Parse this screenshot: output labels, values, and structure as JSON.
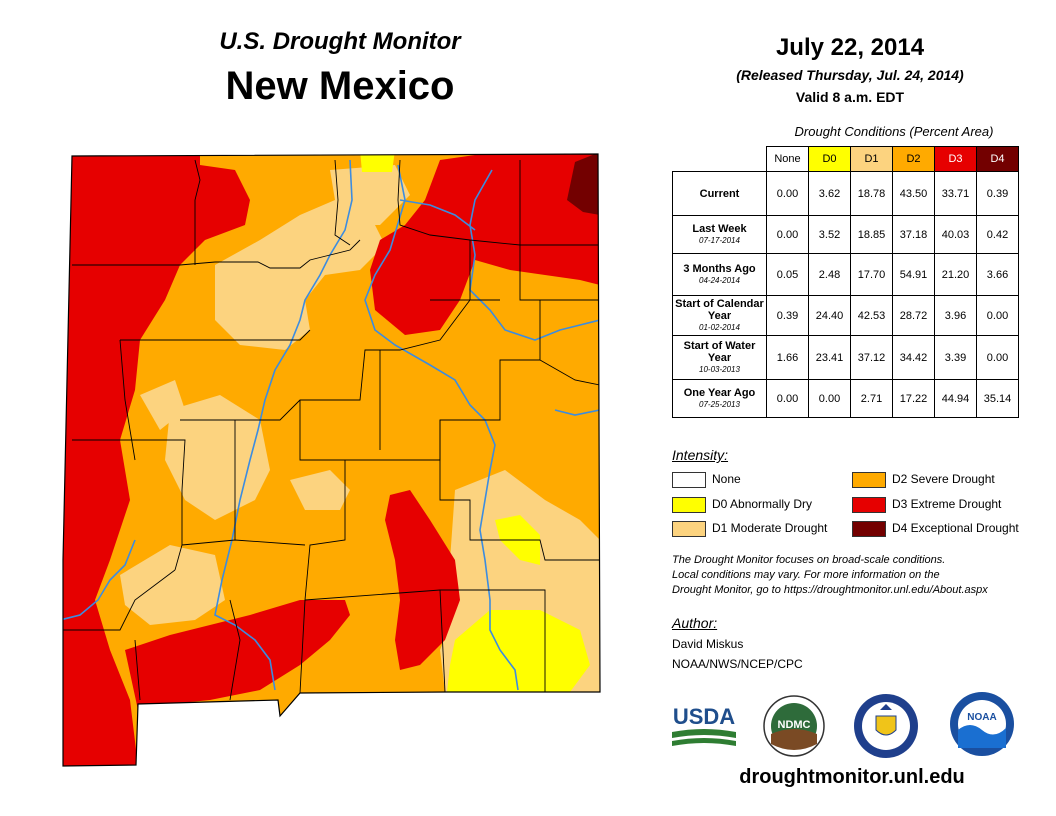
{
  "header": {
    "subtitle": "U.S. Drought Monitor",
    "state": "New Mexico",
    "date": "July 22, 2014",
    "released": "(Released Thursday, Jul. 24, 2014)",
    "valid": "Valid 8 a.m. EDT"
  },
  "table": {
    "caption": "Drought Conditions (Percent Area)",
    "columns": [
      {
        "label": "None",
        "color": "#ffffff"
      },
      {
        "label": "D0",
        "color": "#ffff00"
      },
      {
        "label": "D1",
        "color": "#fcd37f"
      },
      {
        "label": "D2",
        "color": "#ffaa00"
      },
      {
        "label": "D3",
        "color": "#e60000"
      },
      {
        "label": "D4",
        "color": "#730000"
      }
    ],
    "rows": [
      {
        "label": "Current",
        "date": "",
        "values": [
          "0.00",
          "3.62",
          "18.78",
          "43.50",
          "33.71",
          "0.39"
        ]
      },
      {
        "label": "Last Week",
        "date": "07-17-2014",
        "values": [
          "0.00",
          "3.52",
          "18.85",
          "37.18",
          "40.03",
          "0.42"
        ]
      },
      {
        "label": "3 Months Ago",
        "date": "04-24-2014",
        "values": [
          "0.05",
          "2.48",
          "17.70",
          "54.91",
          "21.20",
          "3.66"
        ]
      },
      {
        "label": "Start of Calendar Year",
        "date": "01-02-2014",
        "values": [
          "0.39",
          "24.40",
          "42.53",
          "28.72",
          "3.96",
          "0.00"
        ]
      },
      {
        "label": "Start of Water Year",
        "date": "10-03-2013",
        "values": [
          "1.66",
          "23.41",
          "37.12",
          "34.42",
          "3.39",
          "0.00"
        ]
      },
      {
        "label": "One Year Ago",
        "date": "07-25-2013",
        "values": [
          "0.00",
          "0.00",
          "2.71",
          "17.22",
          "44.94",
          "35.14"
        ]
      }
    ]
  },
  "legend": {
    "title": "Intensity:",
    "items": [
      {
        "label": "None",
        "color": "#ffffff"
      },
      {
        "label": "D0 Abnormally Dry",
        "color": "#ffff00"
      },
      {
        "label": "D1 Moderate Drought",
        "color": "#fcd37f"
      },
      {
        "label": "D2 Severe Drought",
        "color": "#ffaa00"
      },
      {
        "label": "D3 Extreme Drought",
        "color": "#e60000"
      },
      {
        "label": "D4 Exceptional Drought",
        "color": "#730000"
      }
    ]
  },
  "note": {
    "line1": "The Drought Monitor focuses on broad-scale conditions.",
    "line2": "Local conditions may vary. For more information on the",
    "line3": "Drought Monitor, go to https://droughtmonitor.unl.edu/About.aspx"
  },
  "author": {
    "title": "Author:",
    "name": "David Miskus",
    "org": "NOAA/NWS/NCEP/CPC"
  },
  "logos": {
    "usda": "USDA",
    "ndmc": "NDMC",
    "noaa": "NOAA"
  },
  "footer": {
    "url": "droughtmonitor.unl.edu"
  },
  "colors": {
    "river": "#3c8ce0",
    "county": "#000000"
  }
}
